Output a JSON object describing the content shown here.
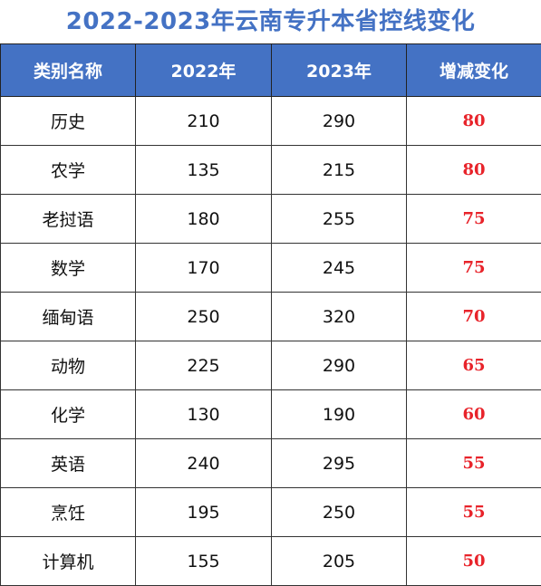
{
  "title": "2022-2023年云南专升本省控线变化",
  "headers": [
    "类别名称",
    "2022年",
    "2023年",
    "增减变化"
  ],
  "rows": [
    {
      "category": "历史",
      "y2022": "210",
      "y2023": "290",
      "change": "80"
    },
    {
      "category": "农学",
      "y2022": "135",
      "y2023": "215",
      "change": "80"
    },
    {
      "category": "老挝语",
      "y2022": "180",
      "y2023": "255",
      "change": "75"
    },
    {
      "category": "数学",
      "y2022": "170",
      "y2023": "245",
      "change": "75"
    },
    {
      "category": "缅甸语",
      "y2022": "250",
      "y2023": "320",
      "change": "70"
    },
    {
      "category": "动物",
      "y2022": "225",
      "y2023": "290",
      "change": "65"
    },
    {
      "category": "化学",
      "y2022": "130",
      "y2023": "190",
      "change": "60"
    },
    {
      "category": "英语",
      "y2022": "240",
      "y2023": "295",
      "change": "55"
    },
    {
      "category": "烹饪",
      "y2022": "195",
      "y2023": "250",
      "change": "55"
    },
    {
      "category": "计算机",
      "y2022": "155",
      "y2023": "205",
      "change": "50"
    }
  ],
  "colors": {
    "title": "#4472c4",
    "header_bg": "#4472c4",
    "header_text": "#ffffff",
    "change_text": "#e8232a"
  }
}
